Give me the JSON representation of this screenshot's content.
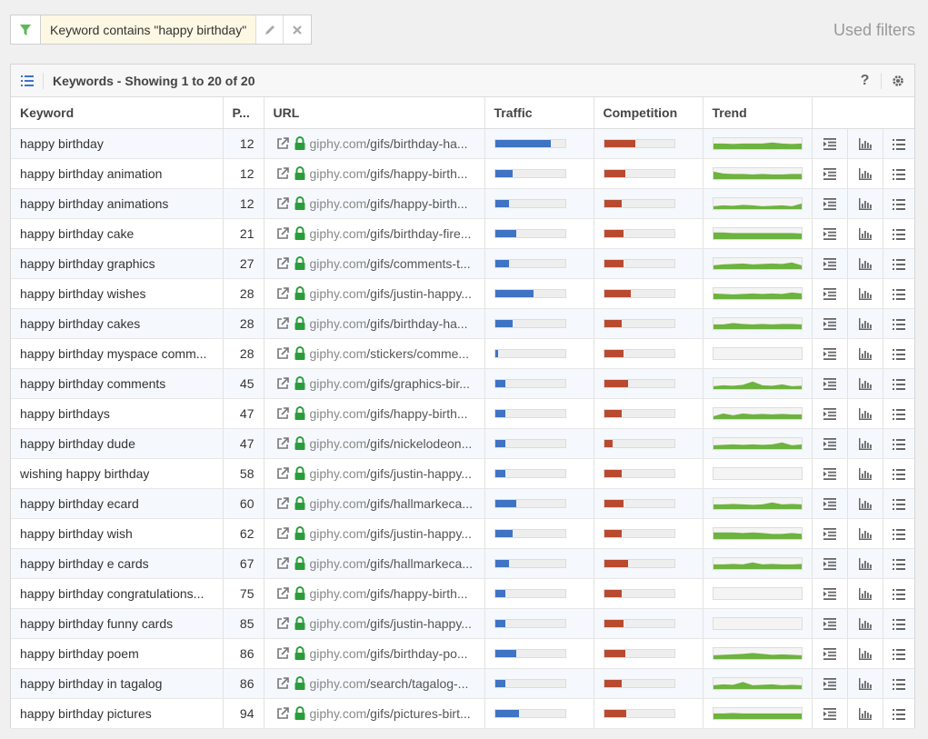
{
  "filter": {
    "chip_text": "Keyword contains \"happy birthday\"",
    "used_filters": "Used filters"
  },
  "panel": {
    "title": "Keywords - Showing 1 to 20 of 20",
    "help": "?"
  },
  "columns": {
    "keyword": "Keyword",
    "position": "P...",
    "url": "URL",
    "traffic": "Traffic",
    "competition": "Competition",
    "trend": "Trend"
  },
  "rows": [
    {
      "keyword": "happy birthday",
      "position": "12",
      "domain": "giphy.com",
      "path": "/gifs/birthday-ha...",
      "traffic": 0.8,
      "competition": 0.45,
      "trend": [
        0.6,
        0.6,
        0.55,
        0.6,
        0.6,
        0.6,
        0.7,
        0.6,
        0.55,
        0.6
      ]
    },
    {
      "keyword": "happy birthday animation",
      "position": "12",
      "domain": "giphy.com",
      "path": "/gifs/happy-birth...",
      "traffic": 0.25,
      "competition": 0.3,
      "trend": [
        0.8,
        0.6,
        0.55,
        0.55,
        0.5,
        0.55,
        0.5,
        0.5,
        0.55,
        0.55
      ]
    },
    {
      "keyword": "happy birthday animations",
      "position": "12",
      "domain": "giphy.com",
      "path": "/gifs/happy-birth...",
      "traffic": 0.2,
      "competition": 0.25,
      "trend": [
        0.3,
        0.4,
        0.35,
        0.45,
        0.4,
        0.3,
        0.35,
        0.4,
        0.3,
        0.6
      ]
    },
    {
      "keyword": "happy birthday cake",
      "position": "21",
      "domain": "giphy.com",
      "path": "/gifs/birthday-fire...",
      "traffic": 0.3,
      "competition": 0.28,
      "trend": [
        0.7,
        0.7,
        0.65,
        0.65,
        0.65,
        0.65,
        0.65,
        0.65,
        0.65,
        0.6
      ]
    },
    {
      "keyword": "happy birthday graphics",
      "position": "27",
      "domain": "giphy.com",
      "path": "/gifs/comments-t...",
      "traffic": 0.2,
      "competition": 0.28,
      "trend": [
        0.4,
        0.5,
        0.55,
        0.6,
        0.5,
        0.55,
        0.6,
        0.55,
        0.7,
        0.4
      ]
    },
    {
      "keyword": "happy birthday wishes",
      "position": "28",
      "domain": "giphy.com",
      "path": "/gifs/justin-happy...",
      "traffic": 0.55,
      "competition": 0.38,
      "trend": [
        0.6,
        0.55,
        0.5,
        0.55,
        0.6,
        0.55,
        0.6,
        0.55,
        0.7,
        0.6
      ]
    },
    {
      "keyword": "happy birthday cakes",
      "position": "28",
      "domain": "giphy.com",
      "path": "/gifs/birthday-ha...",
      "traffic": 0.25,
      "competition": 0.25,
      "trend": [
        0.5,
        0.5,
        0.65,
        0.55,
        0.5,
        0.55,
        0.5,
        0.55,
        0.55,
        0.5
      ]
    },
    {
      "keyword": "happy birthday myspace comm...",
      "position": "28",
      "domain": "giphy.com",
      "path": "/stickers/comme...",
      "traffic": 0.05,
      "competition": 0.28,
      "trend": []
    },
    {
      "keyword": "happy birthday comments",
      "position": "45",
      "domain": "giphy.com",
      "path": "/gifs/graphics-bir...",
      "traffic": 0.15,
      "competition": 0.35,
      "trend": [
        0.3,
        0.4,
        0.35,
        0.45,
        0.8,
        0.4,
        0.35,
        0.5,
        0.3,
        0.35
      ]
    },
    {
      "keyword": "happy birthdays",
      "position": "47",
      "domain": "giphy.com",
      "path": "/gifs/happy-birth...",
      "traffic": 0.15,
      "competition": 0.25,
      "trend": [
        0.3,
        0.6,
        0.4,
        0.6,
        0.5,
        0.55,
        0.5,
        0.55,
        0.5,
        0.5
      ]
    },
    {
      "keyword": "happy birthday dude",
      "position": "47",
      "domain": "giphy.com",
      "path": "/gifs/nickelodeon...",
      "traffic": 0.15,
      "competition": 0.12,
      "trend": [
        0.4,
        0.45,
        0.5,
        0.45,
        0.5,
        0.45,
        0.5,
        0.7,
        0.4,
        0.5
      ]
    },
    {
      "keyword": "wishing happy birthday",
      "position": "58",
      "domain": "giphy.com",
      "path": "/gifs/justin-happy...",
      "traffic": 0.15,
      "competition": 0.25,
      "trend": []
    },
    {
      "keyword": "happy birthday ecard",
      "position": "60",
      "domain": "giphy.com",
      "path": "/gifs/hallmarkeca...",
      "traffic": 0.3,
      "competition": 0.28,
      "trend": [
        0.5,
        0.5,
        0.55,
        0.5,
        0.45,
        0.5,
        0.7,
        0.5,
        0.55,
        0.5
      ]
    },
    {
      "keyword": "happy birthday wish",
      "position": "62",
      "domain": "giphy.com",
      "path": "/gifs/justin-happy...",
      "traffic": 0.25,
      "competition": 0.25,
      "trend": [
        0.7,
        0.7,
        0.7,
        0.65,
        0.7,
        0.65,
        0.55,
        0.55,
        0.65,
        0.55
      ]
    },
    {
      "keyword": "happy birthday e cards",
      "position": "67",
      "domain": "giphy.com",
      "path": "/gifs/hallmarkeca...",
      "traffic": 0.2,
      "competition": 0.35,
      "trend": [
        0.5,
        0.5,
        0.55,
        0.5,
        0.7,
        0.5,
        0.55,
        0.5,
        0.5,
        0.55
      ]
    },
    {
      "keyword": "happy birthday congratulations...",
      "position": "75",
      "domain": "giphy.com",
      "path": "/gifs/happy-birth...",
      "traffic": 0.15,
      "competition": 0.25,
      "trend": []
    },
    {
      "keyword": "happy birthday funny cards",
      "position": "85",
      "domain": "giphy.com",
      "path": "/gifs/justin-happy...",
      "traffic": 0.15,
      "competition": 0.28,
      "trend": []
    },
    {
      "keyword": "happy birthday poem",
      "position": "86",
      "domain": "giphy.com",
      "path": "/gifs/birthday-po...",
      "traffic": 0.3,
      "competition": 0.3,
      "trend": [
        0.4,
        0.45,
        0.5,
        0.55,
        0.65,
        0.55,
        0.45,
        0.5,
        0.45,
        0.4
      ]
    },
    {
      "keyword": "happy birthday in tagalog",
      "position": "86",
      "domain": "giphy.com",
      "path": "/search/tagalog-...",
      "traffic": 0.15,
      "competition": 0.25,
      "trend": [
        0.4,
        0.5,
        0.45,
        0.75,
        0.4,
        0.45,
        0.5,
        0.4,
        0.45,
        0.4
      ]
    },
    {
      "keyword": "happy birthday pictures",
      "position": "94",
      "domain": "giphy.com",
      "path": "/gifs/pictures-birt...",
      "traffic": 0.35,
      "competition": 0.32,
      "trend": [
        0.6,
        0.6,
        0.65,
        0.6,
        0.6,
        0.6,
        0.6,
        0.6,
        0.6,
        0.6
      ]
    }
  ],
  "colors": {
    "traffic": "#3f73c4",
    "competition": "#b94a2f",
    "trend": "#6db33f",
    "filter_icon": "#5cb85c",
    "lock": "#2a9d3a"
  }
}
